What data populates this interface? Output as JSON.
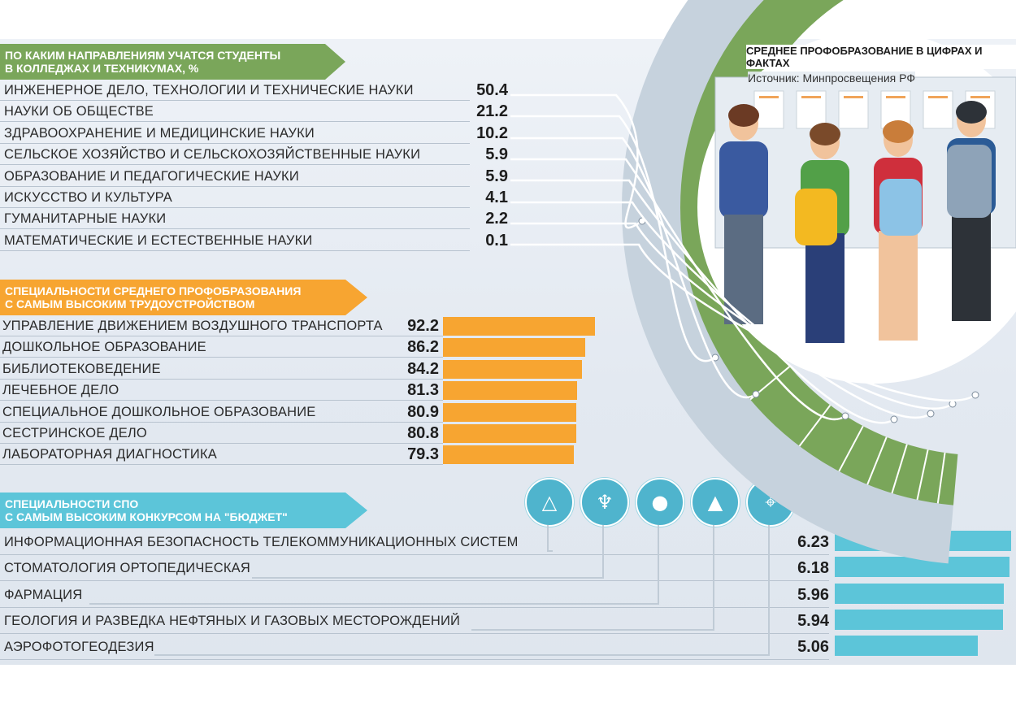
{
  "header": {
    "title": "СРЕДНЕЕ ПРОФОБРАЗОВАНИЕ В ЦИФРАХ И ФАКТАХ",
    "source": "Источник: Минпросвещения РФ"
  },
  "colors": {
    "green": "#7aa65a",
    "orange": "#f7a531",
    "blue": "#5cc5d9"
  },
  "chart_data": [
    {
      "type": "table",
      "title": "ПО КАКИМ НАПРАВЛЕНИЯМ УЧАТСЯ СТУДЕНТЫ В КОЛЛЕДЖАХ И ТЕХНИКУМАХ, %",
      "title_lines": [
        "ПО КАКИМ НАПРАВЛЕНИЯМ УЧАТСЯ СТУДЕНТЫ",
        "В КОЛЛЕДЖАХ И ТЕХНИКУМАХ, %"
      ],
      "categories": [
        "ИНЖЕНЕРНОЕ ДЕЛО, ТЕХНОЛОГИИ И ТЕХНИЧЕСКИЕ НАУКИ",
        "НАУКИ ОБ ОБЩЕСТВЕ",
        "ЗДРАВООХРАНЕНИЕ И МЕДИЦИНСКИЕ НАУКИ",
        "СЕЛЬСКОЕ ХОЗЯЙСТВО И СЕЛЬСКОХОЗЯЙСТВЕННЫЕ НАУКИ",
        "ОБРАЗОВАНИЕ И ПЕДАГОГИЧЕСКИЕ НАУКИ",
        "ИСКУССТВО И КУЛЬТУРА",
        "ГУМАНИТАРНЫЕ НАУКИ",
        "МАТЕМАТИЧЕСКИЕ И ЕСТЕСТВЕННЫЕ НАУКИ"
      ],
      "values": [
        "50.4",
        "21.2",
        "10.2",
        "5.9",
        "5.9",
        "4.1",
        "2.2",
        "0.1"
      ]
    },
    {
      "type": "bar",
      "title": "СПЕЦИАЛЬНОСТИ СРЕДНЕГО ПРОФОБРАЗОВАНИЯ С САМЫМ ВЫСОКИМ ТРУДОУСТРОЙСТВОМ",
      "title_lines": [
        "СПЕЦИАЛЬНОСТИ СРЕДНЕГО ПРОФОБРАЗОВАНИЯ",
        "С САМЫМ ВЫСОКИМ ТРУДОУСТРОЙСТВОМ"
      ],
      "categories": [
        "УПРАВЛЕНИЕ ДВИЖЕНИЕМ ВОЗДУШНОГО ТРАНСПОРТА",
        "ДОШКОЛЬНОЕ ОБРАЗОВАНИЕ",
        "БИБЛИОТЕКОВЕДЕНИЕ",
        "ЛЕЧЕБНОЕ ДЕЛО",
        "СПЕЦИАЛЬНОЕ ДОШКОЛЬНОЕ ОБРАЗОВАНИЕ",
        "СЕСТРИНСКОЕ ДЕЛО",
        "ЛАБОРАТОРНАЯ ДИАГНОСТИКА"
      ],
      "values": [
        "92.2",
        "86.2",
        "84.2",
        "81.3",
        "80.9",
        "80.8",
        "79.3"
      ],
      "numeric": [
        92.2,
        86.2,
        84.2,
        81.3,
        80.9,
        80.8,
        79.3
      ]
    },
    {
      "type": "bar",
      "title": "СПЕЦИАЛЬНОСТИ СПО С САМЫМ ВЫСОКИМ КОНКУРСОМ НА \"БЮДЖЕТ\"",
      "title_lines": [
        "СПЕЦИАЛЬНОСТИ СПО",
        "С САМЫМ ВЫСОКИМ КОНКУРСОМ НА \"БЮДЖЕТ\""
      ],
      "categories": [
        "ИНФОРМАЦИОННАЯ БЕЗОПАСНОСТЬ ТЕЛЕКОММУНИКАЦИОННЫХ СИСТЕМ",
        "СТОМАТОЛОГИЯ ОРТОПЕДИЧЕСКАЯ",
        "ФАРМАЦИЯ",
        "ГЕОЛОГИЯ И РАЗВЕДКА НЕФТЯНЫХ И ГАЗОВЫХ МЕСТОРОЖДЕНИЙ",
        "АЭРОФОТОГЕОДЕЗИЯ"
      ],
      "values": [
        "6.23",
        "6.18",
        "5.96",
        "5.94",
        "5.06"
      ],
      "numeric": [
        6.23,
        6.18,
        5.96,
        5.94,
        5.06
      ],
      "icons": [
        "laser-prism-icon",
        "dental-implant-icon",
        "pills-icon",
        "geology-layers-icon",
        "map-pin-icon"
      ]
    }
  ]
}
